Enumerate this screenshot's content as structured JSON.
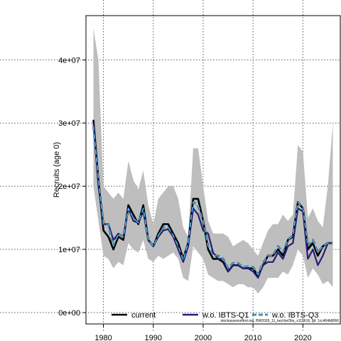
{
  "chart_data": {
    "type": "line",
    "ylabel": "Recruits (age 0)",
    "xlabel": "",
    "xlim": [
      1976.5,
      2027.5
    ],
    "ylim": [
      -1800000,
      47000000
    ],
    "x_ticks": [
      1980,
      1990,
      2000,
      2010,
      2020
    ],
    "x_tick_labels": [
      "1980",
      "1990",
      "2000",
      "2010",
      "2020"
    ],
    "y_ticks": [
      0,
      10000000,
      20000000,
      30000000,
      40000000
    ],
    "y_tick_labels": [
      "0e+00",
      "1e+07",
      "2e+07",
      "3e+07",
      "4e+07"
    ],
    "grid": true,
    "legend_position": "bottom",
    "footnote": "stockassessment.org, BW2026_11_keyVarObs_s119616, git: 1cc464b8066",
    "years": [
      1978,
      1979,
      1980,
      1981,
      1982,
      1983,
      1984,
      1985,
      1986,
      1987,
      1988,
      1989,
      1990,
      1991,
      1992,
      1993,
      1994,
      1995,
      1996,
      1997,
      1998,
      1999,
      2000,
      2001,
      2002,
      2003,
      2004,
      2005,
      2006,
      2007,
      2008,
      2009,
      2010,
      2011,
      2012,
      2013,
      2014,
      2015,
      2016,
      2017,
      2018,
      2019,
      2020,
      2021,
      2022,
      2023,
      2024,
      2025,
      2026
    ],
    "confidence_band": {
      "color": "#bebebe",
      "lower": [
        20000000,
        14500000,
        9000000,
        8500000,
        7000000,
        8000000,
        7500000,
        11000000,
        10000000,
        9500000,
        11500000,
        8500000,
        8000000,
        9000000,
        8500000,
        9000000,
        9500000,
        8500000,
        5500000,
        5000000,
        10500000,
        9500000,
        8500000,
        6000000,
        5500000,
        5000000,
        5000000,
        4500000,
        4000000,
        4500000,
        4500000,
        4000000,
        4000000,
        3000000,
        4000000,
        5500000,
        5500000,
        5500000,
        6500000,
        6000000,
        7500000,
        10000000,
        9000000,
        5500000,
        7000000,
        6000000,
        4500000,
        5000000,
        4000000
      ],
      "upper": [
        45000000,
        40000000,
        20000000,
        19000000,
        18000000,
        19000000,
        18000000,
        24000000,
        21000000,
        19500000,
        22500000,
        17000000,
        14000000,
        18000000,
        19000000,
        20000000,
        20000000,
        18000000,
        13500000,
        12000000,
        26000000,
        26000000,
        20000000,
        14500000,
        12500000,
        12500000,
        12500000,
        12000000,
        10500000,
        11000000,
        11500000,
        11000000,
        10000000,
        9000000,
        11000000,
        13000000,
        14000000,
        14000000,
        15500000,
        14500000,
        15500000,
        26500000,
        25500000,
        15000000,
        16500000,
        14500000,
        13500000,
        20000000,
        30000000
      ]
    },
    "series": [
      {
        "name": "current",
        "color": "#000000",
        "style": "solid",
        "values": [
          30500000,
          21000000,
          13000000,
          12000000,
          10000000,
          12000000,
          11500000,
          17000000,
          15500000,
          14000000,
          17000000,
          11500000,
          10500000,
          12500000,
          14000000,
          14000000,
          12500000,
          11000000,
          8500000,
          11000000,
          18000000,
          18000000,
          14500000,
          10000000,
          8500000,
          8500000,
          8000000,
          6500000,
          7500000,
          7500000,
          7000000,
          7000000,
          7000000,
          5800000,
          7500000,
          9000000,
          9000000,
          10000000,
          9000000,
          11500000,
          12000000,
          17500000,
          16500000,
          10000000,
          11000000,
          9000000,
          10500000,
          11000000,
          11000000
        ]
      },
      {
        "name": "w.o. IBTS-Q1",
        "color": "#2a1a7a",
        "style": "solid",
        "values": [
          30000000,
          20000000,
          14000000,
          14000000,
          11500000,
          12500000,
          12000000,
          16500000,
          14500000,
          14200000,
          16000000,
          11500000,
          10500000,
          12000000,
          13000000,
          13200000,
          12000000,
          10000000,
          8000000,
          10500000,
          16500000,
          15500000,
          13000000,
          12500000,
          9500000,
          8500000,
          8500000,
          6500000,
          7500000,
          7500000,
          7000000,
          7000000,
          6500000,
          5500000,
          7500000,
          8000000,
          8000000,
          9500000,
          8500000,
          10500000,
          11000000,
          16500000,
          16000000,
          8500000,
          10000000,
          7500000,
          9000000,
          11000000,
          11000000
        ]
      },
      {
        "name": "w.o. IBTS-Q3",
        "color": "#4fc3f7",
        "style": "dashed",
        "values": [
          29500000,
          21000000,
          14000000,
          14000000,
          10500000,
          12500000,
          12000000,
          16500000,
          15000000,
          14200000,
          16500000,
          11500000,
          10500000,
          12200000,
          13500000,
          13500000,
          12200000,
          10500000,
          8300000,
          11000000,
          17500000,
          17000000,
          14500000,
          10500000,
          9000000,
          9000000,
          8500000,
          7000000,
          7800000,
          7800000,
          7200000,
          7300000,
          7200000,
          6000000,
          7800000,
          9000000,
          9000000,
          10500000,
          9500000,
          11500000,
          12200000,
          17500000,
          16500000,
          10500000,
          11500000,
          9500000,
          10500000,
          11000000,
          11000000
        ]
      }
    ]
  }
}
